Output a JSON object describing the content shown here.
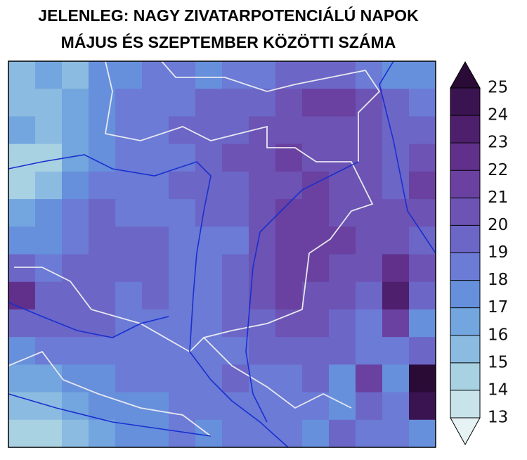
{
  "map": {
    "title_lines": [
      "JELENLEG: NAGY ZIVATARPOTENCIÁLÚ NAPOK",
      "MÁJUS ÉS SZEPTEMBER KÖZÖTTI SZÁMA"
    ],
    "grid": [
      [
        15,
        16,
        15,
        17,
        17,
        18,
        18,
        17,
        18,
        18,
        19,
        19,
        19,
        18,
        17,
        17
      ],
      [
        15,
        15,
        16,
        17,
        18,
        18,
        18,
        19,
        19,
        19,
        20,
        21,
        21,
        20,
        19,
        18
      ],
      [
        16,
        15,
        16,
        17,
        18,
        18,
        19,
        19,
        19,
        20,
        20,
        20,
        20,
        20,
        19,
        19
      ],
      [
        14,
        14,
        16,
        17,
        18,
        18,
        18,
        19,
        20,
        20,
        21,
        20,
        20,
        20,
        19,
        20
      ],
      [
        14,
        15,
        17,
        18,
        18,
        18,
        19,
        19,
        19,
        20,
        20,
        21,
        20,
        20,
        19,
        21
      ],
      [
        16,
        17,
        18,
        19,
        18,
        18,
        18,
        19,
        19,
        20,
        21,
        21,
        20,
        20,
        20,
        20
      ],
      [
        17,
        17,
        18,
        19,
        19,
        19,
        18,
        18,
        18,
        20,
        21,
        21,
        21,
        20,
        20,
        19
      ],
      [
        19,
        18,
        19,
        19,
        19,
        19,
        18,
        18,
        19,
        20,
        21,
        21,
        20,
        20,
        22,
        20
      ],
      [
        22,
        19,
        19,
        19,
        18,
        19,
        18,
        18,
        19,
        20,
        21,
        20,
        20,
        19,
        23,
        19
      ],
      [
        19,
        19,
        19,
        19,
        18,
        18,
        18,
        18,
        19,
        19,
        20,
        20,
        19,
        18,
        21,
        17
      ],
      [
        17,
        18,
        18,
        18,
        18,
        18,
        18,
        18,
        18,
        19,
        19,
        19,
        19,
        18,
        18,
        19
      ],
      [
        16,
        16,
        17,
        17,
        18,
        18,
        18,
        18,
        19,
        18,
        18,
        19,
        17,
        21,
        17,
        25
      ],
      [
        15,
        15,
        16,
        17,
        17,
        17,
        18,
        18,
        18,
        18,
        18,
        18,
        17,
        19,
        18,
        24
      ],
      [
        14,
        14,
        15,
        16,
        17,
        17,
        18,
        17,
        18,
        18,
        18,
        17,
        19,
        18,
        18,
        17
      ]
    ]
  },
  "colorbar": {
    "ticks": [
      13,
      14,
      15,
      16,
      17,
      18,
      19,
      20,
      21,
      22,
      23,
      24,
      25
    ],
    "colors": [
      "#e6f2f3",
      "#c8e3ea",
      "#a8d1e2",
      "#8bbbe0",
      "#73a5de",
      "#6690dc",
      "#6b7bd6",
      "#6c66c7",
      "#6c53b4",
      "#6a41a0",
      "#61308a",
      "#4e1f6c",
      "#3a1450",
      "#2a0b36"
    ]
  }
}
